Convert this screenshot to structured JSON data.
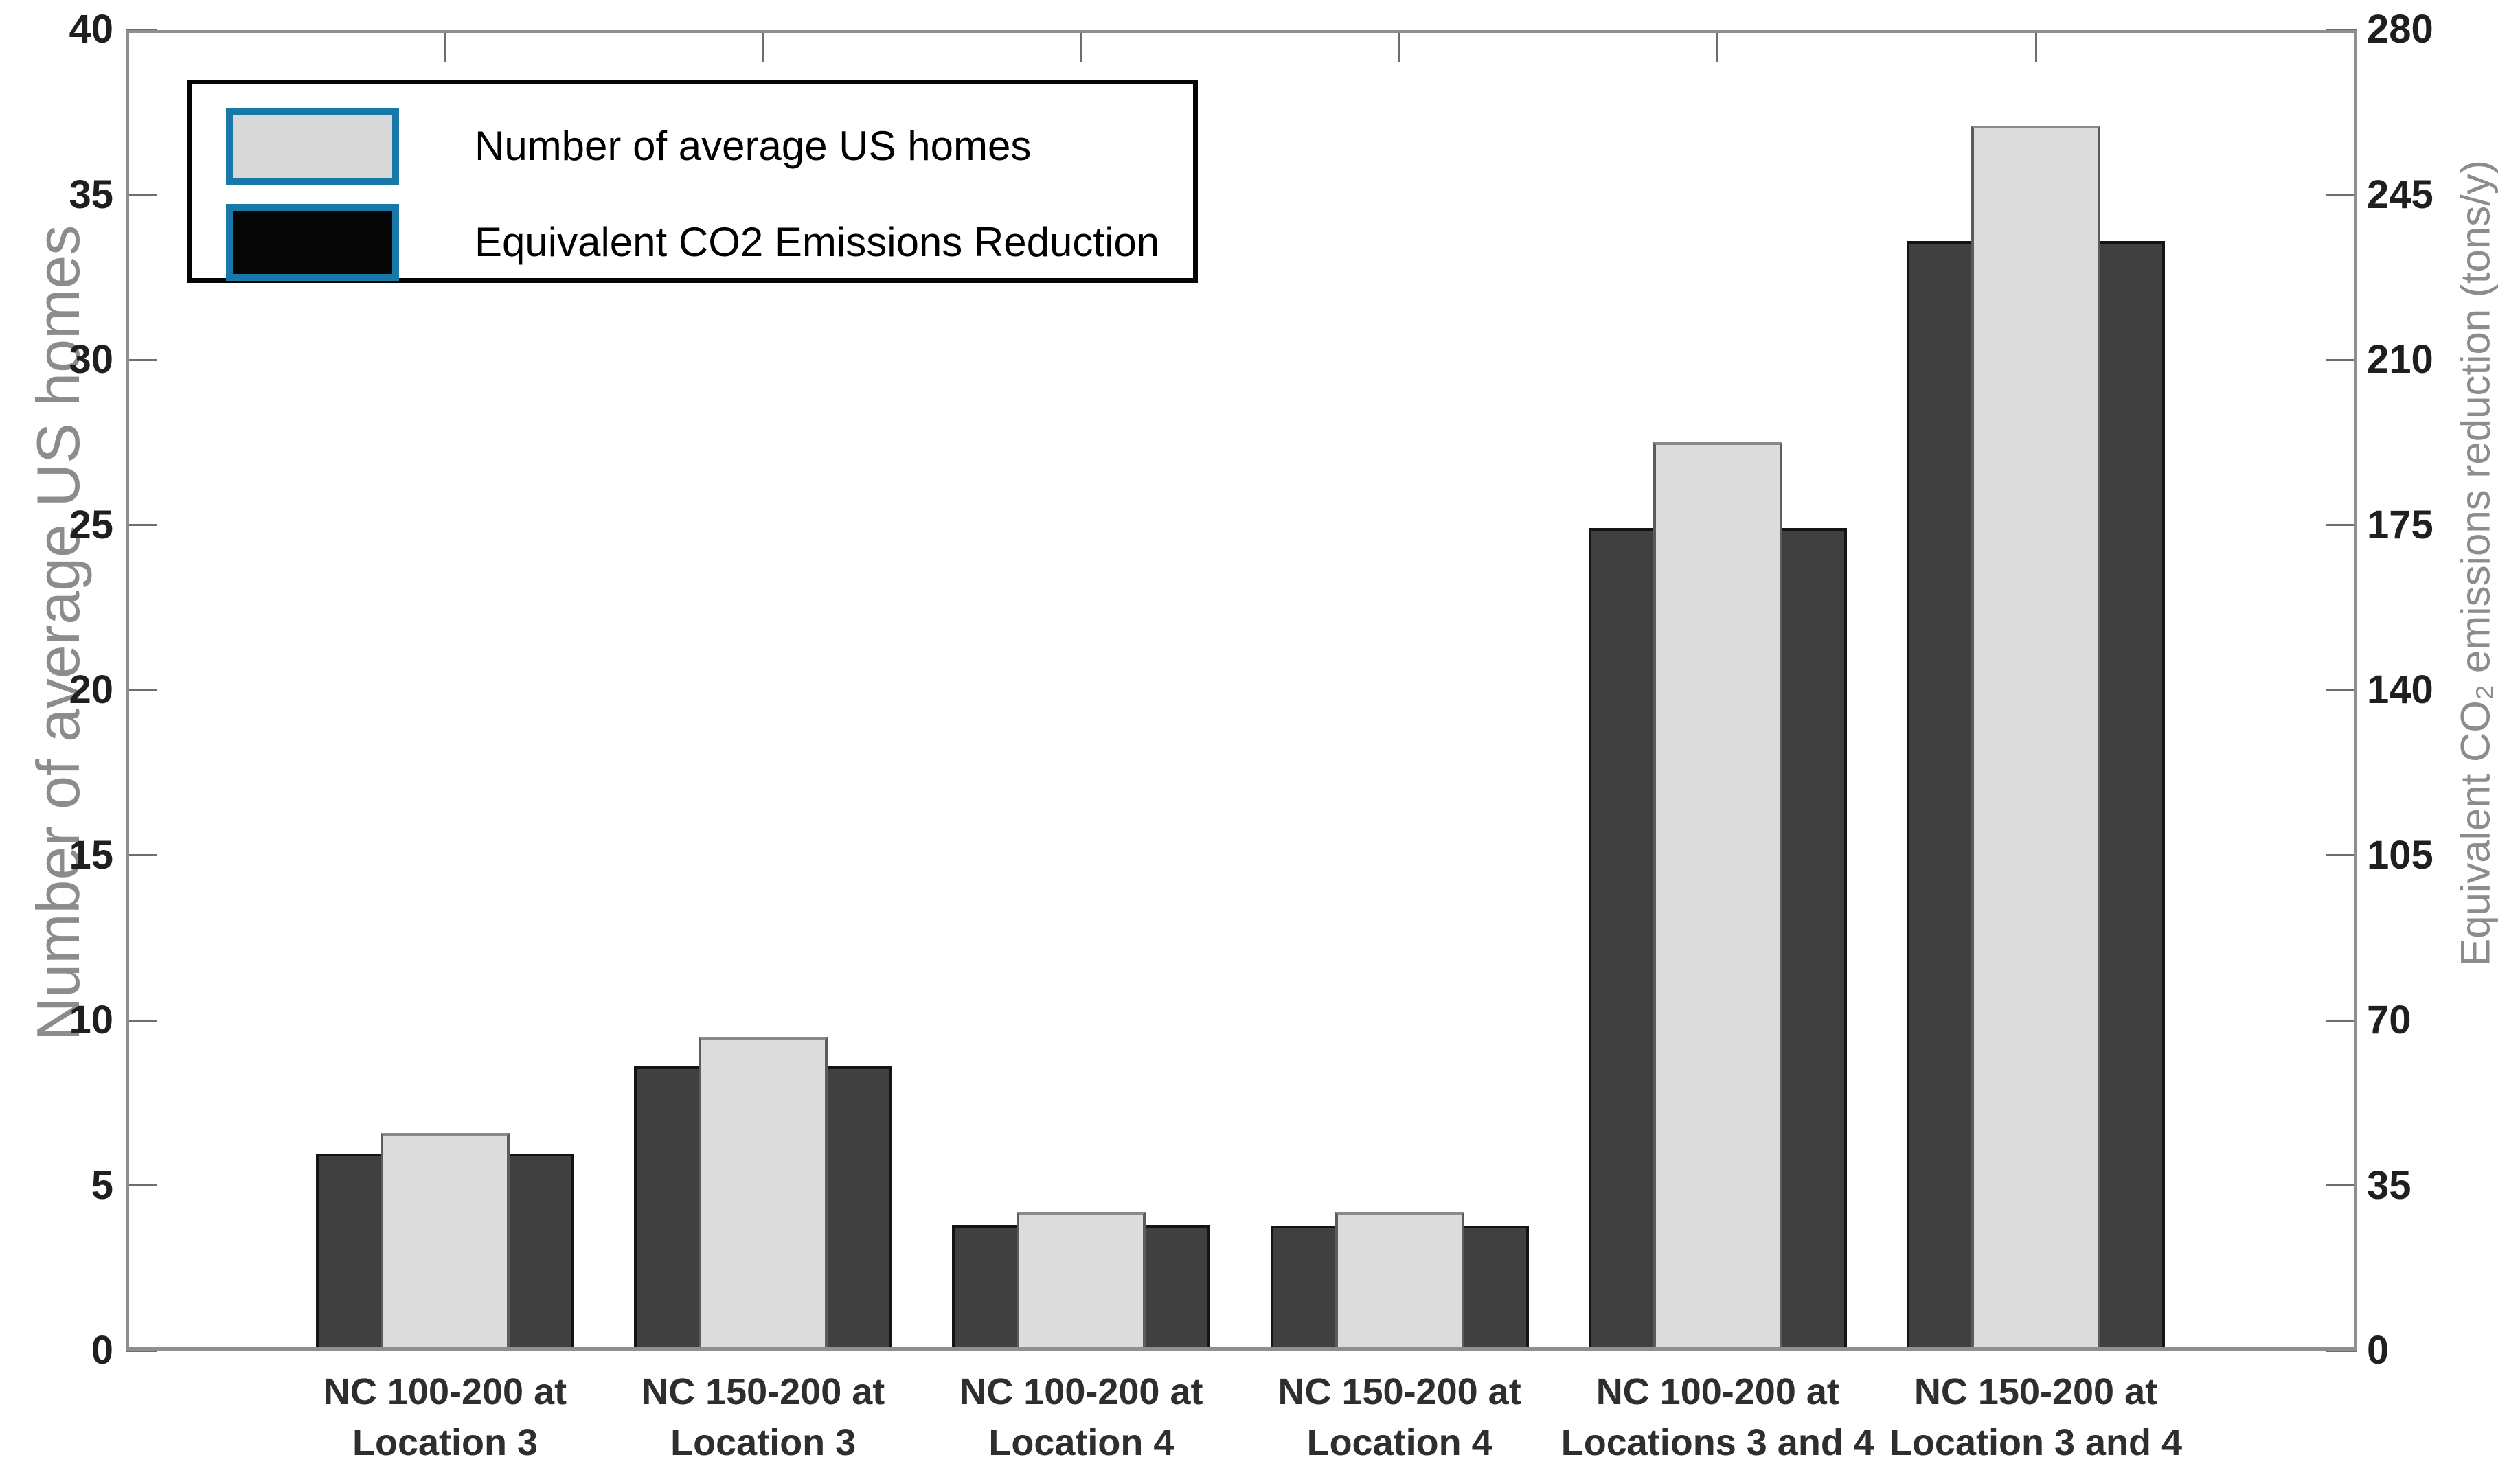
{
  "figure": {
    "background": "#ffffff",
    "spine_color": "#8f8f8f",
    "tick_color": "#6e6e6e",
    "tick_label_color": "#1f1f1f",
    "axis_title_color": "#8c8c8c"
  },
  "legend": {
    "position": "top-left",
    "border_color": "#050505",
    "swatch_border_color": "#1878a8",
    "items": [
      {
        "label": "Number of average US homes",
        "swatch_fill": "#d9d9d9"
      },
      {
        "label": "Equivalent CO2 Emissions Reduction",
        "swatch_fill": "#060606"
      }
    ]
  },
  "chart_data": {
    "type": "bar",
    "title": "",
    "grid": false,
    "legend_position": "top-left",
    "categories": [
      "NC 100-200 at\nLocation 3",
      "NC 150-200 at\nLocation 3",
      "NC 100-200 at\nLocation 4",
      "NC 150-200 at\nLocation 4",
      "NC 100-200 at\nLocations 3 and 4",
      "NC 150-200 at\nLocation 3 and 4"
    ],
    "series": [
      {
        "name": "Number of average US homes",
        "axis": "left",
        "bar_fill": "#dcdcdc",
        "bar_border": "#5c5c5c",
        "values": [
          6.6,
          9.5,
          4.2,
          4.2,
          27.5,
          37.1
        ]
      },
      {
        "name": "Equivalent CO2 Emissions Reduction",
        "axis": "right",
        "bar_fill": "#404040",
        "bar_border": "#141414",
        "values": [
          41.8,
          60.3,
          26.7,
          26.5,
          174.3,
          235.2
        ]
      }
    ],
    "left_axis": {
      "label": "Number of average US homes",
      "min": 0,
      "max": 40,
      "ticks": [
        0,
        5,
        10,
        15,
        20,
        25,
        30,
        35,
        40
      ]
    },
    "right_axis": {
      "label": "Equivalent CO₂ emissions reduction (tons/y)",
      "min": 0,
      "max": 280,
      "ticks": [
        0,
        35,
        70,
        105,
        140,
        175,
        210,
        245,
        280
      ]
    }
  }
}
